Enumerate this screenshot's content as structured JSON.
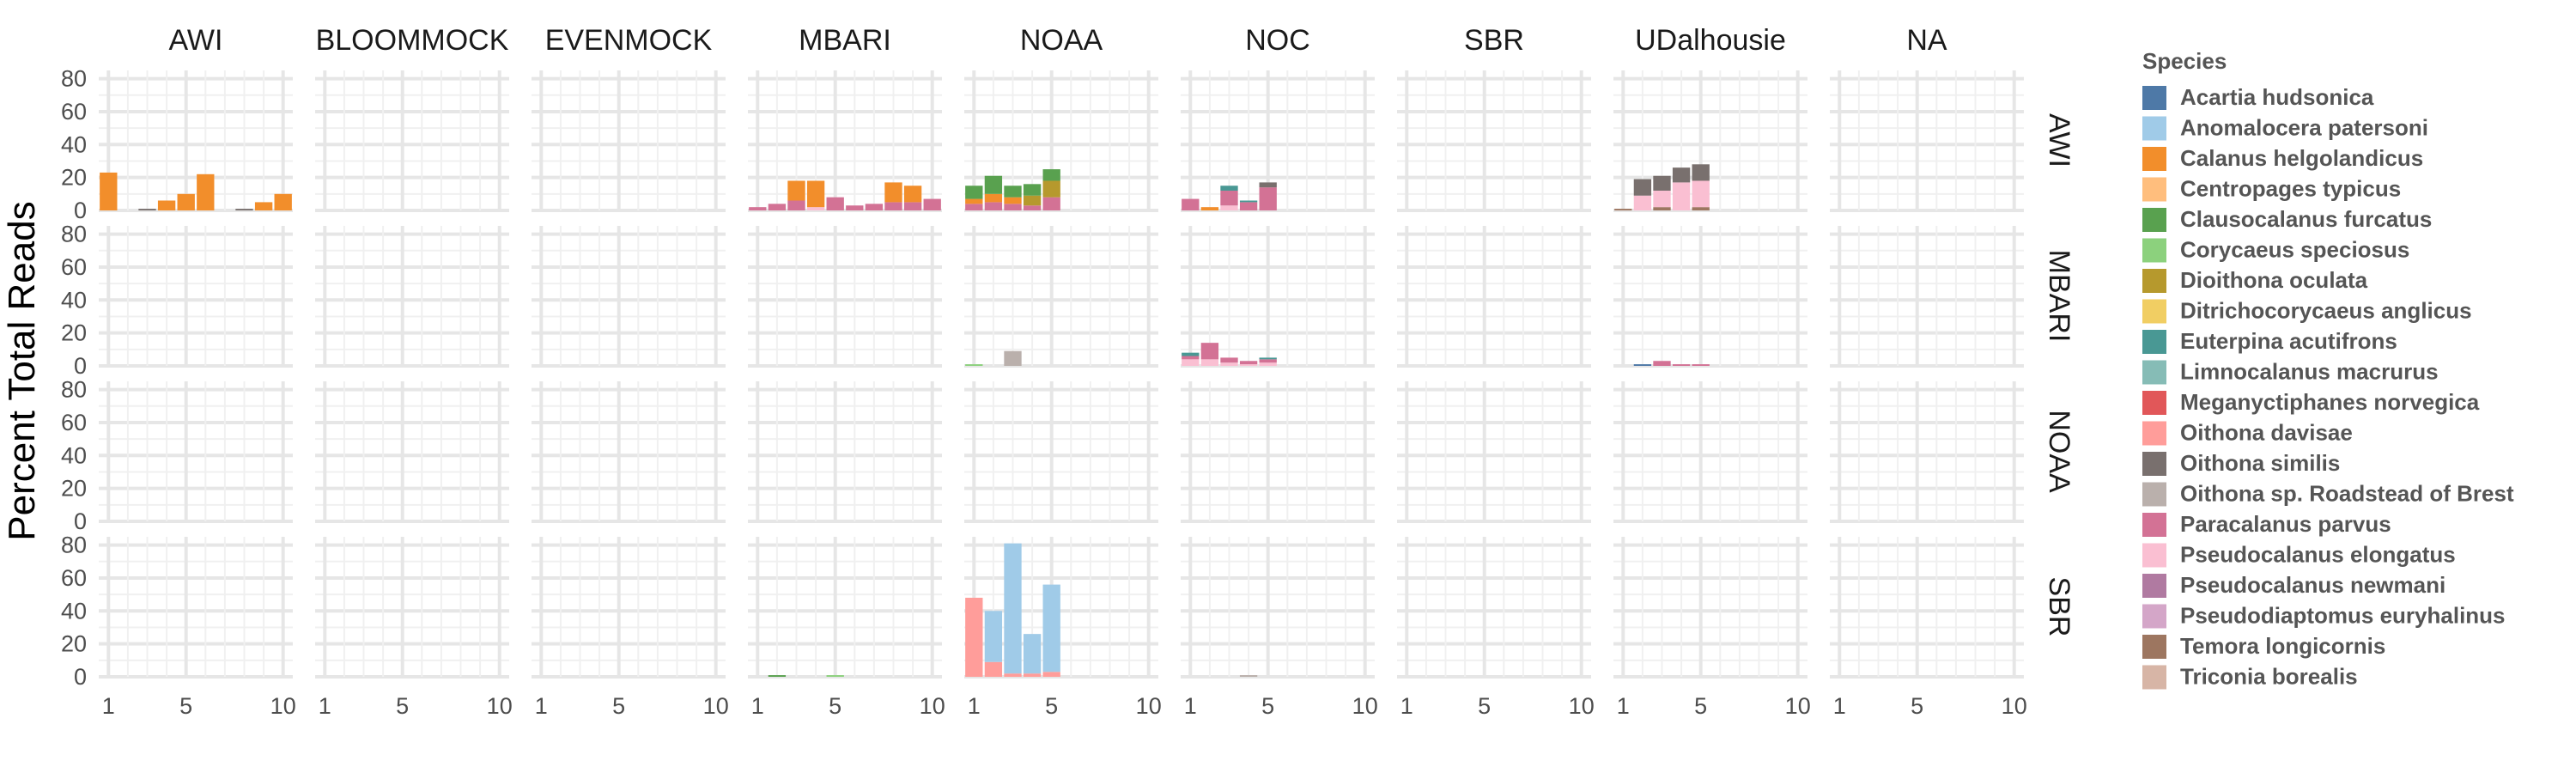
{
  "chart_data": {
    "type": "bar",
    "layout": "facet_grid",
    "ylabel": "Percent Total Reads",
    "col_facets": [
      "AWI",
      "BLOOMMOCK",
      "EVENMOCK",
      "MBARI",
      "NOAA",
      "NOC",
      "SBR",
      "UDalhousie",
      "NA"
    ],
    "row_facets": [
      "AWI",
      "MBARI",
      "NOAA",
      "SBR"
    ],
    "x_ticks": [
      1,
      5,
      10
    ],
    "x_range": [
      0.5,
      10.5
    ],
    "y_ticks": [
      0,
      20,
      40,
      60,
      80
    ],
    "ylim": [
      0,
      85
    ],
    "grid": true,
    "legend": {
      "title": "Species",
      "placement": "right",
      "entries": [
        {
          "name": "Acartia hudsonica",
          "color": "#4E79A7"
        },
        {
          "name": "Anomalocera patersoni",
          "color": "#A0CBE8"
        },
        {
          "name": "Calanus helgolandicus",
          "color": "#F28E2B"
        },
        {
          "name": "Centropages typicus",
          "color": "#FFBE7D"
        },
        {
          "name": "Clausocalanus furcatus",
          "color": "#59A14F"
        },
        {
          "name": "Corycaeus speciosus",
          "color": "#8CD17D"
        },
        {
          "name": "Dioithona oculata",
          "color": "#B6992D"
        },
        {
          "name": "Ditrichocorycaeus anglicus",
          "color": "#F1CE63"
        },
        {
          "name": "Euterpina acutifrons",
          "color": "#499894"
        },
        {
          "name": "Limnocalanus macrurus",
          "color": "#86BCB6"
        },
        {
          "name": "Meganyctiphanes norvegica",
          "color": "#E15759"
        },
        {
          "name": "Oithona davisae",
          "color": "#FF9D9A"
        },
        {
          "name": "Oithona similis",
          "color": "#79706E"
        },
        {
          "name": "Oithona sp. Roadstead of Brest",
          "color": "#BAB0AC"
        },
        {
          "name": "Paracalanus parvus",
          "color": "#D37295"
        },
        {
          "name": "Pseudocalanus elongatus",
          "color": "#FABFD2"
        },
        {
          "name": "Pseudocalanus newmani",
          "color": "#B07AA1"
        },
        {
          "name": "Pseudodiaptomus euryhalinus",
          "color": "#D4A6C8"
        },
        {
          "name": "Temora longicornis",
          "color": "#9D7660"
        },
        {
          "name": "Triconia borealis",
          "color": "#D7B5A6"
        }
      ]
    },
    "panels": [
      {
        "row": "AWI",
        "col": "AWI",
        "bars": [
          {
            "x": 1,
            "stack": [
              [
                "Calanus helgolandicus",
                23
              ]
            ]
          },
          {
            "x": 3,
            "stack": [
              [
                "Oithona similis",
                1
              ]
            ]
          },
          {
            "x": 4,
            "stack": [
              [
                "Calanus helgolandicus",
                6
              ]
            ]
          },
          {
            "x": 5,
            "stack": [
              [
                "Calanus helgolandicus",
                10
              ]
            ]
          },
          {
            "x": 6,
            "stack": [
              [
                "Calanus helgolandicus",
                22
              ]
            ]
          },
          {
            "x": 8,
            "stack": [
              [
                "Oithona similis",
                1
              ]
            ]
          },
          {
            "x": 9,
            "stack": [
              [
                "Calanus helgolandicus",
                5
              ]
            ]
          },
          {
            "x": 10,
            "stack": [
              [
                "Calanus helgolandicus",
                10
              ]
            ]
          }
        ]
      },
      {
        "row": "AWI",
        "col": "MBARI",
        "bars": [
          {
            "x": 1,
            "stack": [
              [
                "Paracalanus parvus",
                2
              ]
            ]
          },
          {
            "x": 2,
            "stack": [
              [
                "Paracalanus parvus",
                4
              ]
            ]
          },
          {
            "x": 3,
            "stack": [
              [
                "Paracalanus parvus",
                6
              ],
              [
                "Calanus helgolandicus",
                12
              ]
            ]
          },
          {
            "x": 4,
            "stack": [
              [
                "Pseudocalanus elongatus",
                2
              ],
              [
                "Calanus helgolandicus",
                16
              ]
            ]
          },
          {
            "x": 5,
            "stack": [
              [
                "Paracalanus parvus",
                8
              ]
            ]
          },
          {
            "x": 6,
            "stack": [
              [
                "Paracalanus parvus",
                3
              ]
            ]
          },
          {
            "x": 7,
            "stack": [
              [
                "Paracalanus parvus",
                4
              ]
            ]
          },
          {
            "x": 8,
            "stack": [
              [
                "Paracalanus parvus",
                5
              ],
              [
                "Calanus helgolandicus",
                12
              ]
            ]
          },
          {
            "x": 9,
            "stack": [
              [
                "Paracalanus parvus",
                5
              ],
              [
                "Calanus helgolandicus",
                10
              ]
            ]
          },
          {
            "x": 10,
            "stack": [
              [
                "Paracalanus parvus",
                7
              ]
            ]
          }
        ]
      },
      {
        "row": "AWI",
        "col": "NOAA",
        "bars": [
          {
            "x": 1,
            "stack": [
              [
                "Paracalanus parvus",
                4
              ],
              [
                "Calanus helgolandicus",
                3
              ],
              [
                "Clausocalanus furcatus",
                8
              ]
            ]
          },
          {
            "x": 2,
            "stack": [
              [
                "Paracalanus parvus",
                5
              ],
              [
                "Calanus helgolandicus",
                5
              ],
              [
                "Clausocalanus furcatus",
                11
              ]
            ]
          },
          {
            "x": 3,
            "stack": [
              [
                "Paracalanus parvus",
                4
              ],
              [
                "Calanus helgolandicus",
                4
              ],
              [
                "Clausocalanus furcatus",
                7
              ]
            ]
          },
          {
            "x": 4,
            "stack": [
              [
                "Paracalanus parvus",
                3
              ],
              [
                "Dioithona oculata",
                6
              ],
              [
                "Clausocalanus furcatus",
                7
              ]
            ]
          },
          {
            "x": 5,
            "stack": [
              [
                "Paracalanus parvus",
                8
              ],
              [
                "Dioithona oculata",
                10
              ],
              [
                "Clausocalanus furcatus",
                7
              ]
            ]
          }
        ]
      },
      {
        "row": "AWI",
        "col": "NOC",
        "bars": [
          {
            "x": 1,
            "stack": [
              [
                "Paracalanus parvus",
                7
              ]
            ]
          },
          {
            "x": 2,
            "stack": [
              [
                "Calanus helgolandicus",
                2
              ]
            ]
          },
          {
            "x": 3,
            "stack": [
              [
                "Pseudocalanus elongatus",
                3
              ],
              [
                "Paracalanus parvus",
                9
              ],
              [
                "Euterpina acutifrons",
                3
              ]
            ]
          },
          {
            "x": 4,
            "stack": [
              [
                "Paracalanus parvus",
                5
              ],
              [
                "Euterpina acutifrons",
                1
              ]
            ]
          },
          {
            "x": 5,
            "stack": [
              [
                "Paracalanus parvus",
                14
              ],
              [
                "Oithona similis",
                3
              ]
            ]
          }
        ]
      },
      {
        "row": "AWI",
        "col": "UDalhousie",
        "bars": [
          {
            "x": 1,
            "stack": [
              [
                "Temora longicornis",
                1
              ]
            ]
          },
          {
            "x": 2,
            "stack": [
              [
                "Pseudocalanus elongatus",
                9
              ],
              [
                "Oithona similis",
                10
              ]
            ]
          },
          {
            "x": 3,
            "stack": [
              [
                "Temora longicornis",
                2
              ],
              [
                "Pseudocalanus elongatus",
                10
              ],
              [
                "Oithona similis",
                9
              ]
            ]
          },
          {
            "x": 4,
            "stack": [
              [
                "Pseudocalanus elongatus",
                17
              ],
              [
                "Oithona similis",
                9
              ]
            ]
          },
          {
            "x": 5,
            "stack": [
              [
                "Temora longicornis",
                2
              ],
              [
                "Pseudocalanus elongatus",
                16
              ],
              [
                "Oithona similis",
                10
              ]
            ]
          }
        ]
      },
      {
        "row": "MBARI",
        "col": "NOAA",
        "bars": [
          {
            "x": 1,
            "stack": [
              [
                "Corycaeus speciosus",
                1
              ]
            ]
          },
          {
            "x": 3,
            "stack": [
              [
                "Oithona sp. Roadstead of Brest",
                9
              ]
            ]
          }
        ]
      },
      {
        "row": "MBARI",
        "col": "NOC",
        "bars": [
          {
            "x": 1,
            "stack": [
              [
                "Pseudocalanus elongatus",
                4
              ],
              [
                "Paracalanus parvus",
                2
              ],
              [
                "Euterpina acutifrons",
                2
              ]
            ]
          },
          {
            "x": 2,
            "stack": [
              [
                "Pseudocalanus elongatus",
                4
              ],
              [
                "Paracalanus parvus",
                10
              ]
            ]
          },
          {
            "x": 3,
            "stack": [
              [
                "Pseudocalanus elongatus",
                2
              ],
              [
                "Paracalanus parvus",
                3
              ]
            ]
          },
          {
            "x": 4,
            "stack": [
              [
                "Pseudocalanus elongatus",
                1
              ],
              [
                "Paracalanus parvus",
                2
              ]
            ]
          },
          {
            "x": 5,
            "stack": [
              [
                "Pseudocalanus elongatus",
                2
              ],
              [
                "Paracalanus parvus",
                2
              ],
              [
                "Euterpina acutifrons",
                1
              ]
            ]
          }
        ]
      },
      {
        "row": "MBARI",
        "col": "UDalhousie",
        "bars": [
          {
            "x": 2,
            "stack": [
              [
                "Acartia hudsonica",
                1
              ]
            ]
          },
          {
            "x": 3,
            "stack": [
              [
                "Paracalanus parvus",
                3
              ]
            ]
          },
          {
            "x": 4,
            "stack": [
              [
                "Paracalanus parvus",
                1
              ]
            ]
          },
          {
            "x": 5,
            "stack": [
              [
                "Paracalanus parvus",
                1
              ]
            ]
          }
        ]
      },
      {
        "row": "SBR",
        "col": "MBARI",
        "bars": [
          {
            "x": 2,
            "stack": [
              [
                "Clausocalanus furcatus",
                1
              ]
            ]
          },
          {
            "x": 5,
            "stack": [
              [
                "Corycaeus speciosus",
                1
              ]
            ]
          }
        ]
      },
      {
        "row": "SBR",
        "col": "NOAA",
        "bars": [
          {
            "x": 1,
            "stack": [
              [
                "Oithona davisae",
                48
              ]
            ]
          },
          {
            "x": 2,
            "stack": [
              [
                "Oithona davisae",
                9
              ],
              [
                "Anomalocera patersoni",
                31
              ]
            ]
          },
          {
            "x": 3,
            "stack": [
              [
                "Oithona davisae",
                2
              ],
              [
                "Anomalocera patersoni",
                79
              ]
            ]
          },
          {
            "x": 4,
            "stack": [
              [
                "Oithona davisae",
                2
              ],
              [
                "Anomalocera patersoni",
                24
              ]
            ]
          },
          {
            "x": 5,
            "stack": [
              [
                "Oithona davisae",
                3
              ],
              [
                "Anomalocera patersoni",
                53
              ]
            ]
          }
        ]
      },
      {
        "row": "SBR",
        "col": "NOC",
        "bars": [
          {
            "x": 4,
            "stack": [
              [
                "Oithona sp. Roadstead of Brest",
                1
              ]
            ]
          }
        ]
      }
    ]
  }
}
